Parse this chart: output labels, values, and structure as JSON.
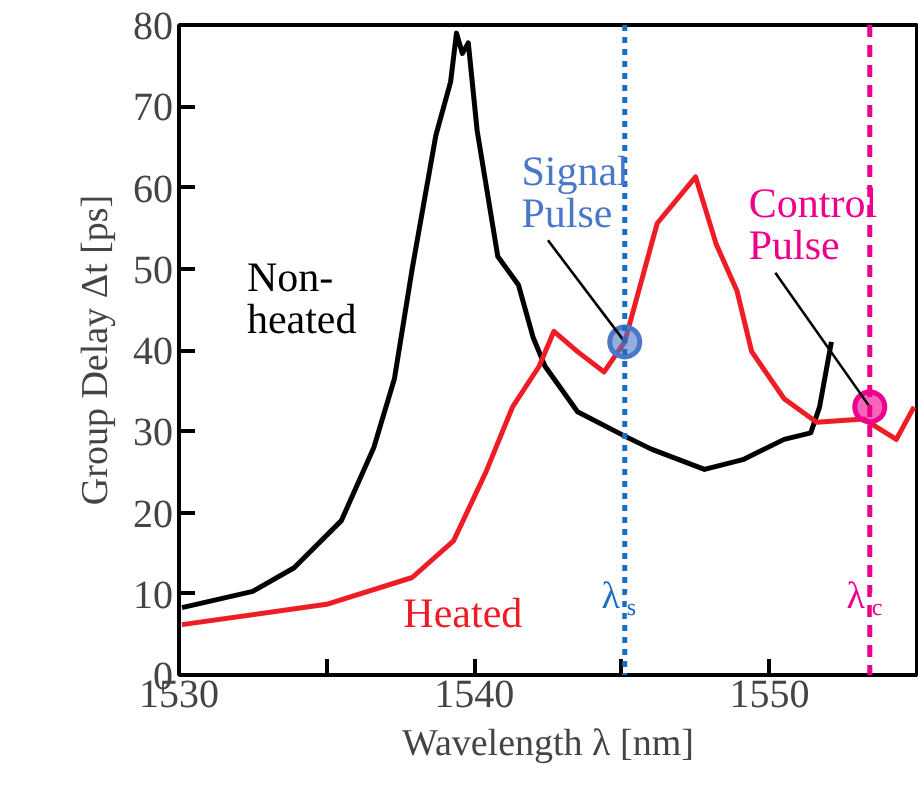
{
  "chart_data": {
    "type": "line",
    "xlabel": "Wavelength λ [nm]",
    "ylabel": "Group Delay Δt [ps]",
    "xlim": [
      1530,
      1555
    ],
    "ylim": [
      0,
      80
    ],
    "xticks": [
      1530,
      {
        "value": 1535,
        "label": null
      },
      1540,
      {
        "value": 1545,
        "label": null
      },
      1550,
      {
        "value": 1555,
        "label": null
      }
    ],
    "yticks": [
      0,
      10,
      20,
      30,
      40,
      50,
      60,
      70,
      80
    ],
    "marker": "none",
    "line_style": "solid",
    "series": [
      {
        "name": "Non-heated",
        "color": "#000000",
        "x": [
          1530.1,
          1532.5,
          1533.9,
          1535.5,
          1536.6,
          1537.3,
          1537.9,
          1538.7,
          1539.2,
          1539.4,
          1539.6,
          1539.8,
          1540.1,
          1540.8,
          1541.5,
          1542.0,
          1542.4,
          1543.5,
          1545.1,
          1546.0,
          1547.8,
          1549.1,
          1550.5,
          1551.4,
          1551.7,
          1552.1
        ],
        "values": [
          8.3,
          10.3,
          13.2,
          19,
          28,
          36.5,
          50,
          66.4,
          73,
          79,
          76.5,
          77.8,
          67,
          51.5,
          48,
          41.5,
          38,
          32.4,
          29.4,
          27.8,
          25.3,
          26.5,
          29,
          29.8,
          33,
          41
        ]
      },
      {
        "name": "Heated",
        "color": "#ee1c25",
        "x": [
          1530.1,
          1535.0,
          1537.9,
          1539.3,
          1540.4,
          1541.3,
          1542.2,
          1542.7,
          1543.5,
          1544.4,
          1545.1,
          1546.2,
          1547.5,
          1548.2,
          1548.9,
          1549.4,
          1550.5,
          1551.6,
          1553.2,
          1554.3,
          1554.9
        ],
        "values": [
          6.2,
          8.7,
          12,
          16.5,
          25,
          33,
          38,
          42.3,
          39.8,
          37.3,
          41,
          55.6,
          61.3,
          53,
          47.3,
          39.8,
          34,
          31.1,
          31.5,
          29,
          33
        ]
      },
      {
        "name": "Signal Pulse",
        "type": "scatter",
        "marker": "circle",
        "color": "#4a78c8",
        "x": [
          1545.1
        ],
        "values": [
          41
        ]
      },
      {
        "name": "Control Pulse",
        "type": "scatter",
        "marker": "circle",
        "color": "#ec008c",
        "x": [
          1553.4
        ],
        "values": [
          33
        ]
      }
    ],
    "ref_lines": [
      {
        "axis": "x",
        "value": 1545.1,
        "label": "λ$_{s}$",
        "color": "#1a6fc0",
        "line_style": "dotted"
      },
      {
        "axis": "x",
        "value": 1553.4,
        "label": "λ$_{c}$",
        "color": "#ec008c",
        "line_style": "dashed"
      }
    ]
  }
}
